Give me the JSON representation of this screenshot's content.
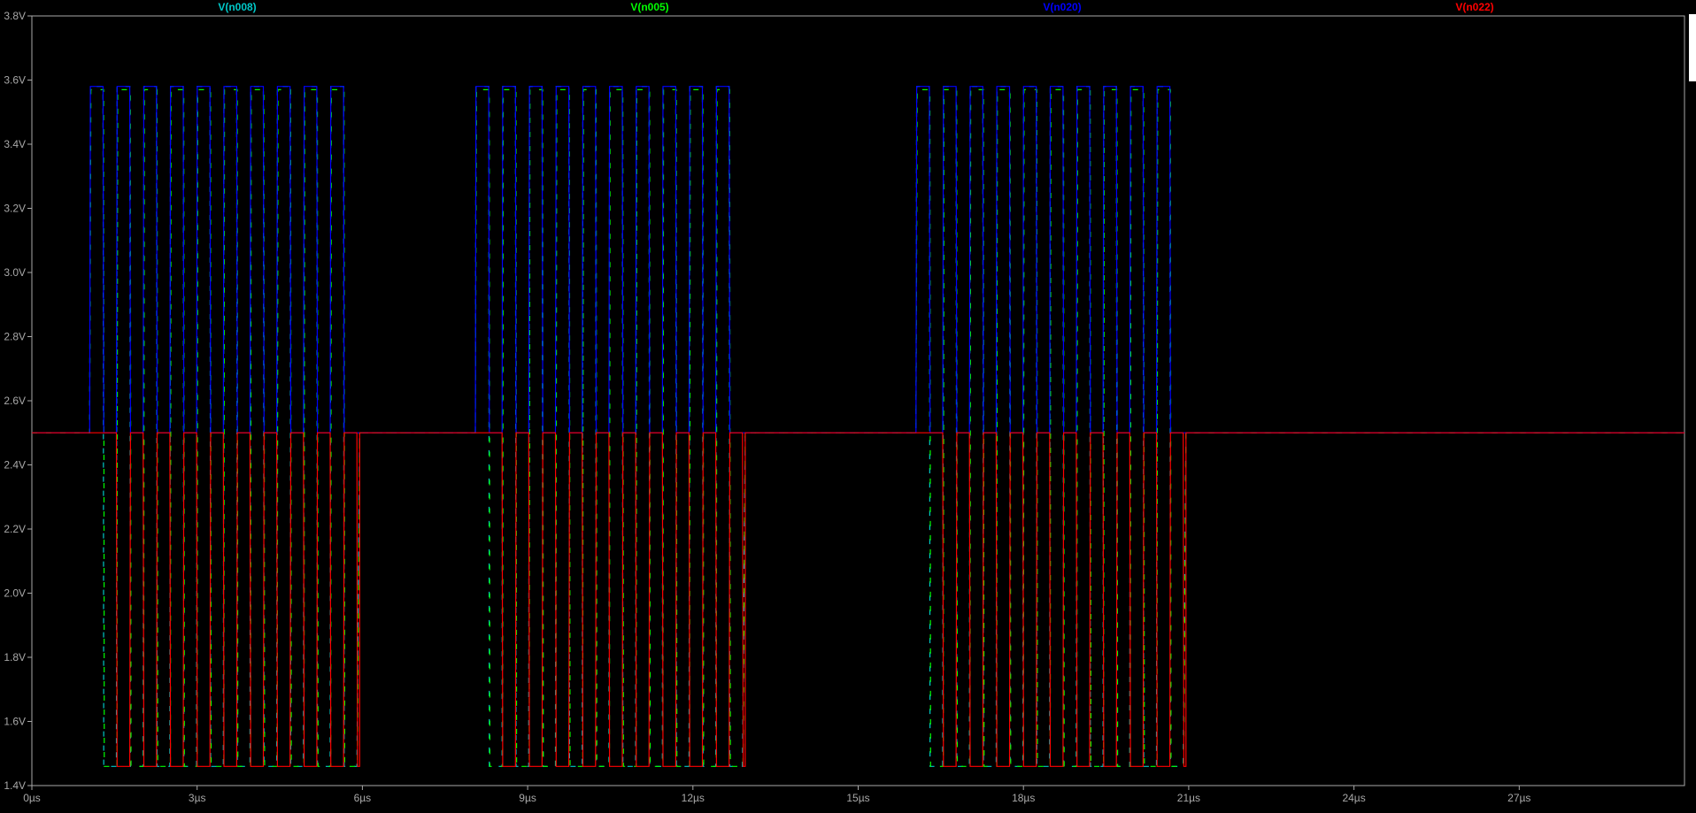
{
  "chart_data": {
    "type": "line",
    "title": "",
    "xlabel": "",
    "ylabel": "",
    "xlim": [
      0,
      30
    ],
    "ylim": [
      1.4,
      3.8
    ],
    "x_ticks": [
      0,
      3,
      6,
      9,
      12,
      15,
      18,
      21,
      24,
      27
    ],
    "x_tick_labels": [
      "0µs",
      "3µs",
      "6µs",
      "9µs",
      "12µs",
      "15µs",
      "18µs",
      "21µs",
      "24µs",
      "27µs"
    ],
    "y_ticks": [
      1.4,
      1.6,
      1.8,
      2.0,
      2.2,
      2.4,
      2.6,
      2.8,
      3.0,
      3.2,
      3.4,
      3.6,
      3.8
    ],
    "y_tick_labels": [
      "1.4V",
      "1.6V",
      "1.8V",
      "2.0V",
      "2.2V",
      "2.4V",
      "2.6V",
      "2.8V",
      "3.0V",
      "3.2V",
      "3.4V",
      "3.6V",
      "3.8V"
    ],
    "grid": false,
    "legend_position": "top",
    "series": [
      {
        "name": "V(n008)",
        "color": "#00c8c8",
        "high": 3.58,
        "low": 1.46,
        "idle": 2.5
      },
      {
        "name": "V(n005)",
        "color": "#00ff00",
        "high": 3.57,
        "low": 1.46,
        "idle": 2.5
      },
      {
        "name": "V(n020)",
        "color": "#0000ff",
        "high": 3.58,
        "low": 2.5,
        "idle": 2.5
      },
      {
        "name": "V(n022)",
        "color": "#ff0000",
        "high": 2.5,
        "low": 1.46,
        "idle": 2.5
      }
    ],
    "bursts": [
      {
        "start": 1.05,
        "end": 5.9,
        "pulses": 10
      },
      {
        "start": 8.05,
        "end": 12.9,
        "pulses": 10
      },
      {
        "start": 16.05,
        "end": 20.9,
        "pulses": 10
      }
    ]
  }
}
